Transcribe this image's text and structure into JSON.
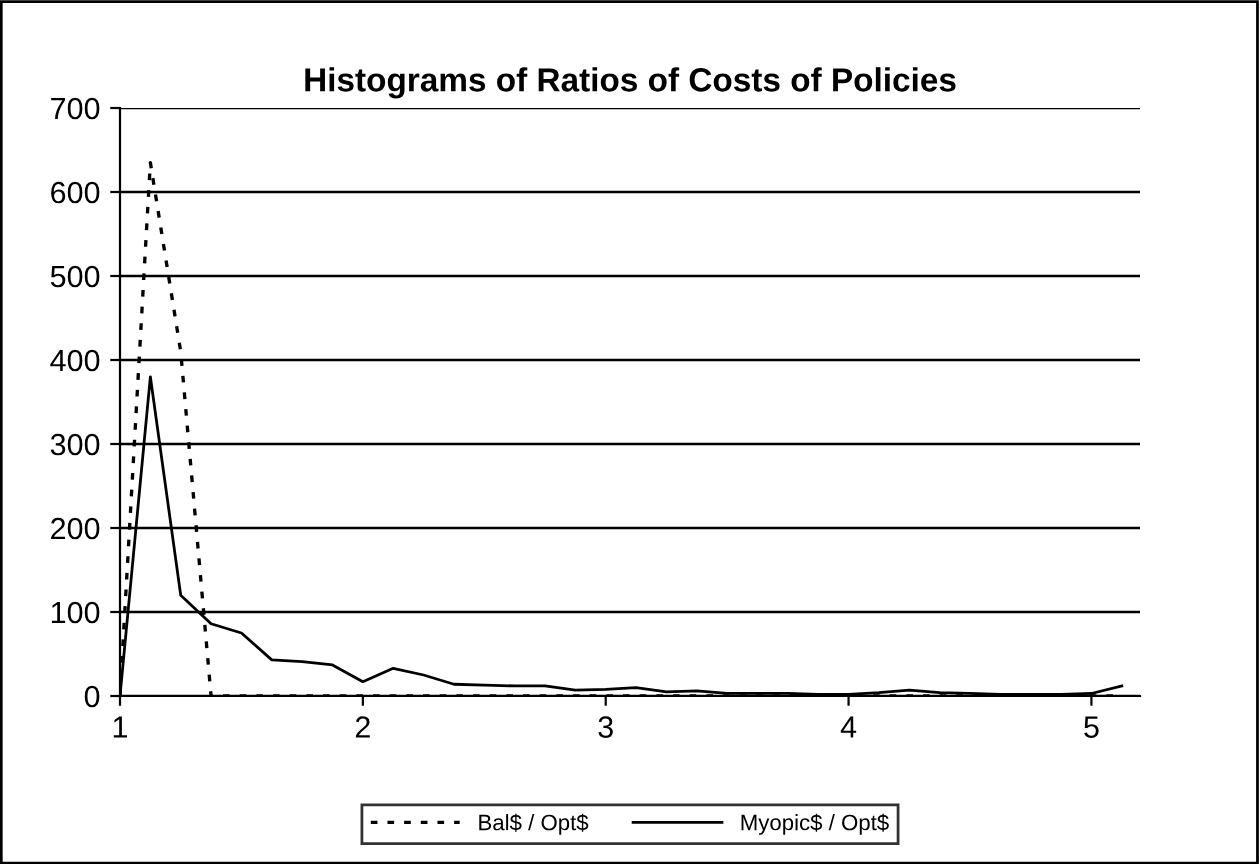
{
  "chart_data": {
    "type": "line",
    "title": "Histograms of Ratios of Costs of Policies",
    "x": [
      1,
      1.125,
      1.25,
      1.375,
      1.5,
      1.625,
      1.75,
      1.875,
      2,
      2.125,
      2.25,
      2.375,
      2.5,
      2.625,
      2.75,
      2.875,
      3,
      3.125,
      3.25,
      3.375,
      3.5,
      3.625,
      3.75,
      3.875,
      4,
      4.125,
      4.25,
      4.375,
      4.5,
      4.625,
      4.75,
      4.875,
      5,
      5.125
    ],
    "series": [
      {
        "name": "Bal$ / Opt$",
        "color": "#000000",
        "line_style": "dotted",
        "values": [
          0,
          635,
          410,
          0,
          0,
          0,
          0,
          0,
          0,
          0,
          0,
          0,
          0,
          0,
          0,
          0,
          0,
          0,
          0,
          0,
          0,
          0,
          0,
          0,
          0,
          0,
          0,
          0,
          0,
          0,
          0,
          0,
          0,
          0
        ]
      },
      {
        "name": "Myopic$ / Opt$",
        "color": "#000000",
        "line_style": "solid",
        "values": [
          0,
          380,
          120,
          86,
          75,
          43,
          41,
          37,
          17,
          33,
          25,
          14,
          13,
          12,
          12,
          7,
          8,
          10,
          5,
          6,
          3,
          3,
          3,
          2,
          2,
          4,
          7,
          4,
          3,
          2,
          2,
          2,
          3,
          12
        ]
      }
    ],
    "xlim": [
      1,
      5.2
    ],
    "xticks": [
      1,
      2,
      3,
      4,
      5
    ],
    "ylim": [
      0,
      700
    ],
    "yticks": [
      0,
      100,
      200,
      300,
      400,
      500,
      600,
      700
    ],
    "grid": "y",
    "legend": "bottom",
    "marker": "none"
  }
}
